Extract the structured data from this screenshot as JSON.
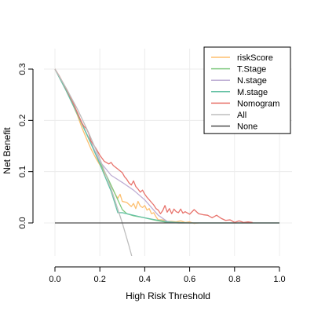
{
  "chart_data": {
    "type": "line",
    "title": "",
    "xlabel": "High Risk Threshold",
    "ylabel": "Net Benefit",
    "xlim": [
      0,
      1
    ],
    "ylim": [
      -0.065,
      0.33
    ],
    "xticks": [
      0,
      0.2,
      0.4,
      0.6,
      0.8,
      1
    ],
    "xtick_labels": [
      "0.0",
      "0.2",
      "0.4",
      "0.6",
      "0.8",
      "1.0"
    ],
    "yticks": [
      0,
      0.1,
      0.2,
      0.3
    ],
    "ytick_labels": [
      "0.0",
      "0.1",
      "0.2",
      "0.3"
    ],
    "grid": true,
    "legend_position": "top-right",
    "series": [
      {
        "name": "riskScore",
        "color": "#FDBF6F",
        "x": [
          0,
          0.02,
          0.04,
          0.06,
          0.08,
          0.1,
          0.12,
          0.14,
          0.16,
          0.18,
          0.2,
          0.22,
          0.24,
          0.26,
          0.27,
          0.28,
          0.29,
          0.3,
          0.32,
          0.34,
          0.35,
          0.36,
          0.37,
          0.38,
          0.39,
          0.4,
          0.41,
          0.42,
          0.43,
          0.44,
          0.45,
          0.46,
          0.48,
          0.5,
          0.52,
          0.54,
          0.56,
          0.58,
          0.6,
          0.62,
          0.64
        ],
        "y": [
          0.3,
          0.285,
          0.268,
          0.25,
          0.23,
          0.21,
          0.186,
          0.165,
          0.145,
          0.128,
          0.113,
          0.098,
          0.082,
          0.064,
          0.055,
          0.048,
          0.056,
          0.042,
          0.04,
          0.032,
          0.038,
          0.028,
          0.042,
          0.033,
          0.03,
          0.034,
          0.025,
          0.028,
          0.018,
          0.02,
          0.012,
          0.006,
          0.006,
          0.003,
          0.003,
          0.002,
          0.004,
          0.001,
          0.002,
          -0.001,
          0
        ]
      },
      {
        "name": "T.Stage",
        "color": "#7FC97F",
        "x": [
          0,
          0.05,
          0.1,
          0.15,
          0.2,
          0.22,
          0.24,
          0.26,
          0.28,
          0.3,
          0.32,
          0.35,
          0.4,
          0.45,
          0.5,
          0.55,
          0.6,
          1
        ],
        "y": [
          0.3,
          0.258,
          0.212,
          0.165,
          0.118,
          0.101,
          0.083,
          0.064,
          0.045,
          0.026,
          0.018,
          0.014,
          0.01,
          0.005,
          0.001,
          0,
          0,
          0
        ]
      },
      {
        "name": "N.stage",
        "color": "#BEAED4",
        "x": [
          0,
          0.05,
          0.1,
          0.15,
          0.2,
          0.25,
          0.3,
          0.35,
          0.4,
          0.43,
          0.46,
          0.5,
          0.55,
          0.6,
          1
        ],
        "y": [
          0.3,
          0.258,
          0.213,
          0.166,
          0.12,
          0.093,
          0.079,
          0.064,
          0.045,
          0.03,
          0.015,
          0.003,
          0,
          0,
          0
        ]
      },
      {
        "name": "M.stage",
        "color": "#66C2A5",
        "x": [
          0,
          0.05,
          0.1,
          0.15,
          0.2,
          0.25,
          0.28,
          0.3,
          0.35,
          0.4,
          0.45,
          0.5,
          0.55,
          0.6,
          1
        ],
        "y": [
          0.3,
          0.258,
          0.212,
          0.165,
          0.115,
          0.062,
          0.02,
          0.02,
          0.015,
          0.01,
          0.006,
          0.002,
          0.001,
          0,
          0
        ]
      },
      {
        "name": "Nomogram",
        "color": "#E8736C",
        "x": [
          0,
          0.02,
          0.04,
          0.06,
          0.08,
          0.1,
          0.12,
          0.13,
          0.14,
          0.15,
          0.16,
          0.18,
          0.2,
          0.22,
          0.24,
          0.25,
          0.26,
          0.28,
          0.3,
          0.31,
          0.32,
          0.33,
          0.34,
          0.35,
          0.36,
          0.37,
          0.38,
          0.39,
          0.4,
          0.41,
          0.42,
          0.43,
          0.44,
          0.45,
          0.46,
          0.47,
          0.48,
          0.49,
          0.5,
          0.51,
          0.52,
          0.53,
          0.54,
          0.55,
          0.56,
          0.57,
          0.58,
          0.6,
          0.62,
          0.64,
          0.66,
          0.68,
          0.7,
          0.72,
          0.74,
          0.76,
          0.78,
          0.8,
          0.82,
          0.84,
          0.86,
          0.88
        ],
        "y": [
          0.3,
          0.286,
          0.27,
          0.253,
          0.235,
          0.215,
          0.195,
          0.188,
          0.184,
          0.175,
          0.16,
          0.147,
          0.132,
          0.12,
          0.115,
          0.118,
          0.112,
          0.105,
          0.098,
          0.09,
          0.085,
          0.078,
          0.074,
          0.082,
          0.071,
          0.066,
          0.06,
          0.064,
          0.056,
          0.05,
          0.045,
          0.04,
          0.035,
          0.028,
          0.025,
          0.018,
          0.024,
          0.034,
          0.021,
          0.028,
          0.018,
          0.027,
          0.022,
          0.02,
          0.027,
          0.019,
          0.022,
          0.017,
          0.026,
          0.018,
          0.016,
          0.015,
          0.01,
          0.015,
          0.009,
          0.005,
          0.006,
          0.001,
          0.004,
          0.001,
          0.002,
          0.001
        ]
      },
      {
        "name": "All",
        "color": "#BEBEBE",
        "x": [
          0,
          0.05,
          0.1,
          0.15,
          0.2,
          0.25,
          0.3,
          0.33,
          0.36
        ],
        "y": [
          0.3,
          0.263,
          0.222,
          0.176,
          0.125,
          0.067,
          0,
          -0.045,
          -0.094
        ]
      },
      {
        "name": "None",
        "color": "#4D4D4D",
        "x": [
          0,
          1
        ],
        "y": [
          0,
          0
        ]
      }
    ]
  }
}
